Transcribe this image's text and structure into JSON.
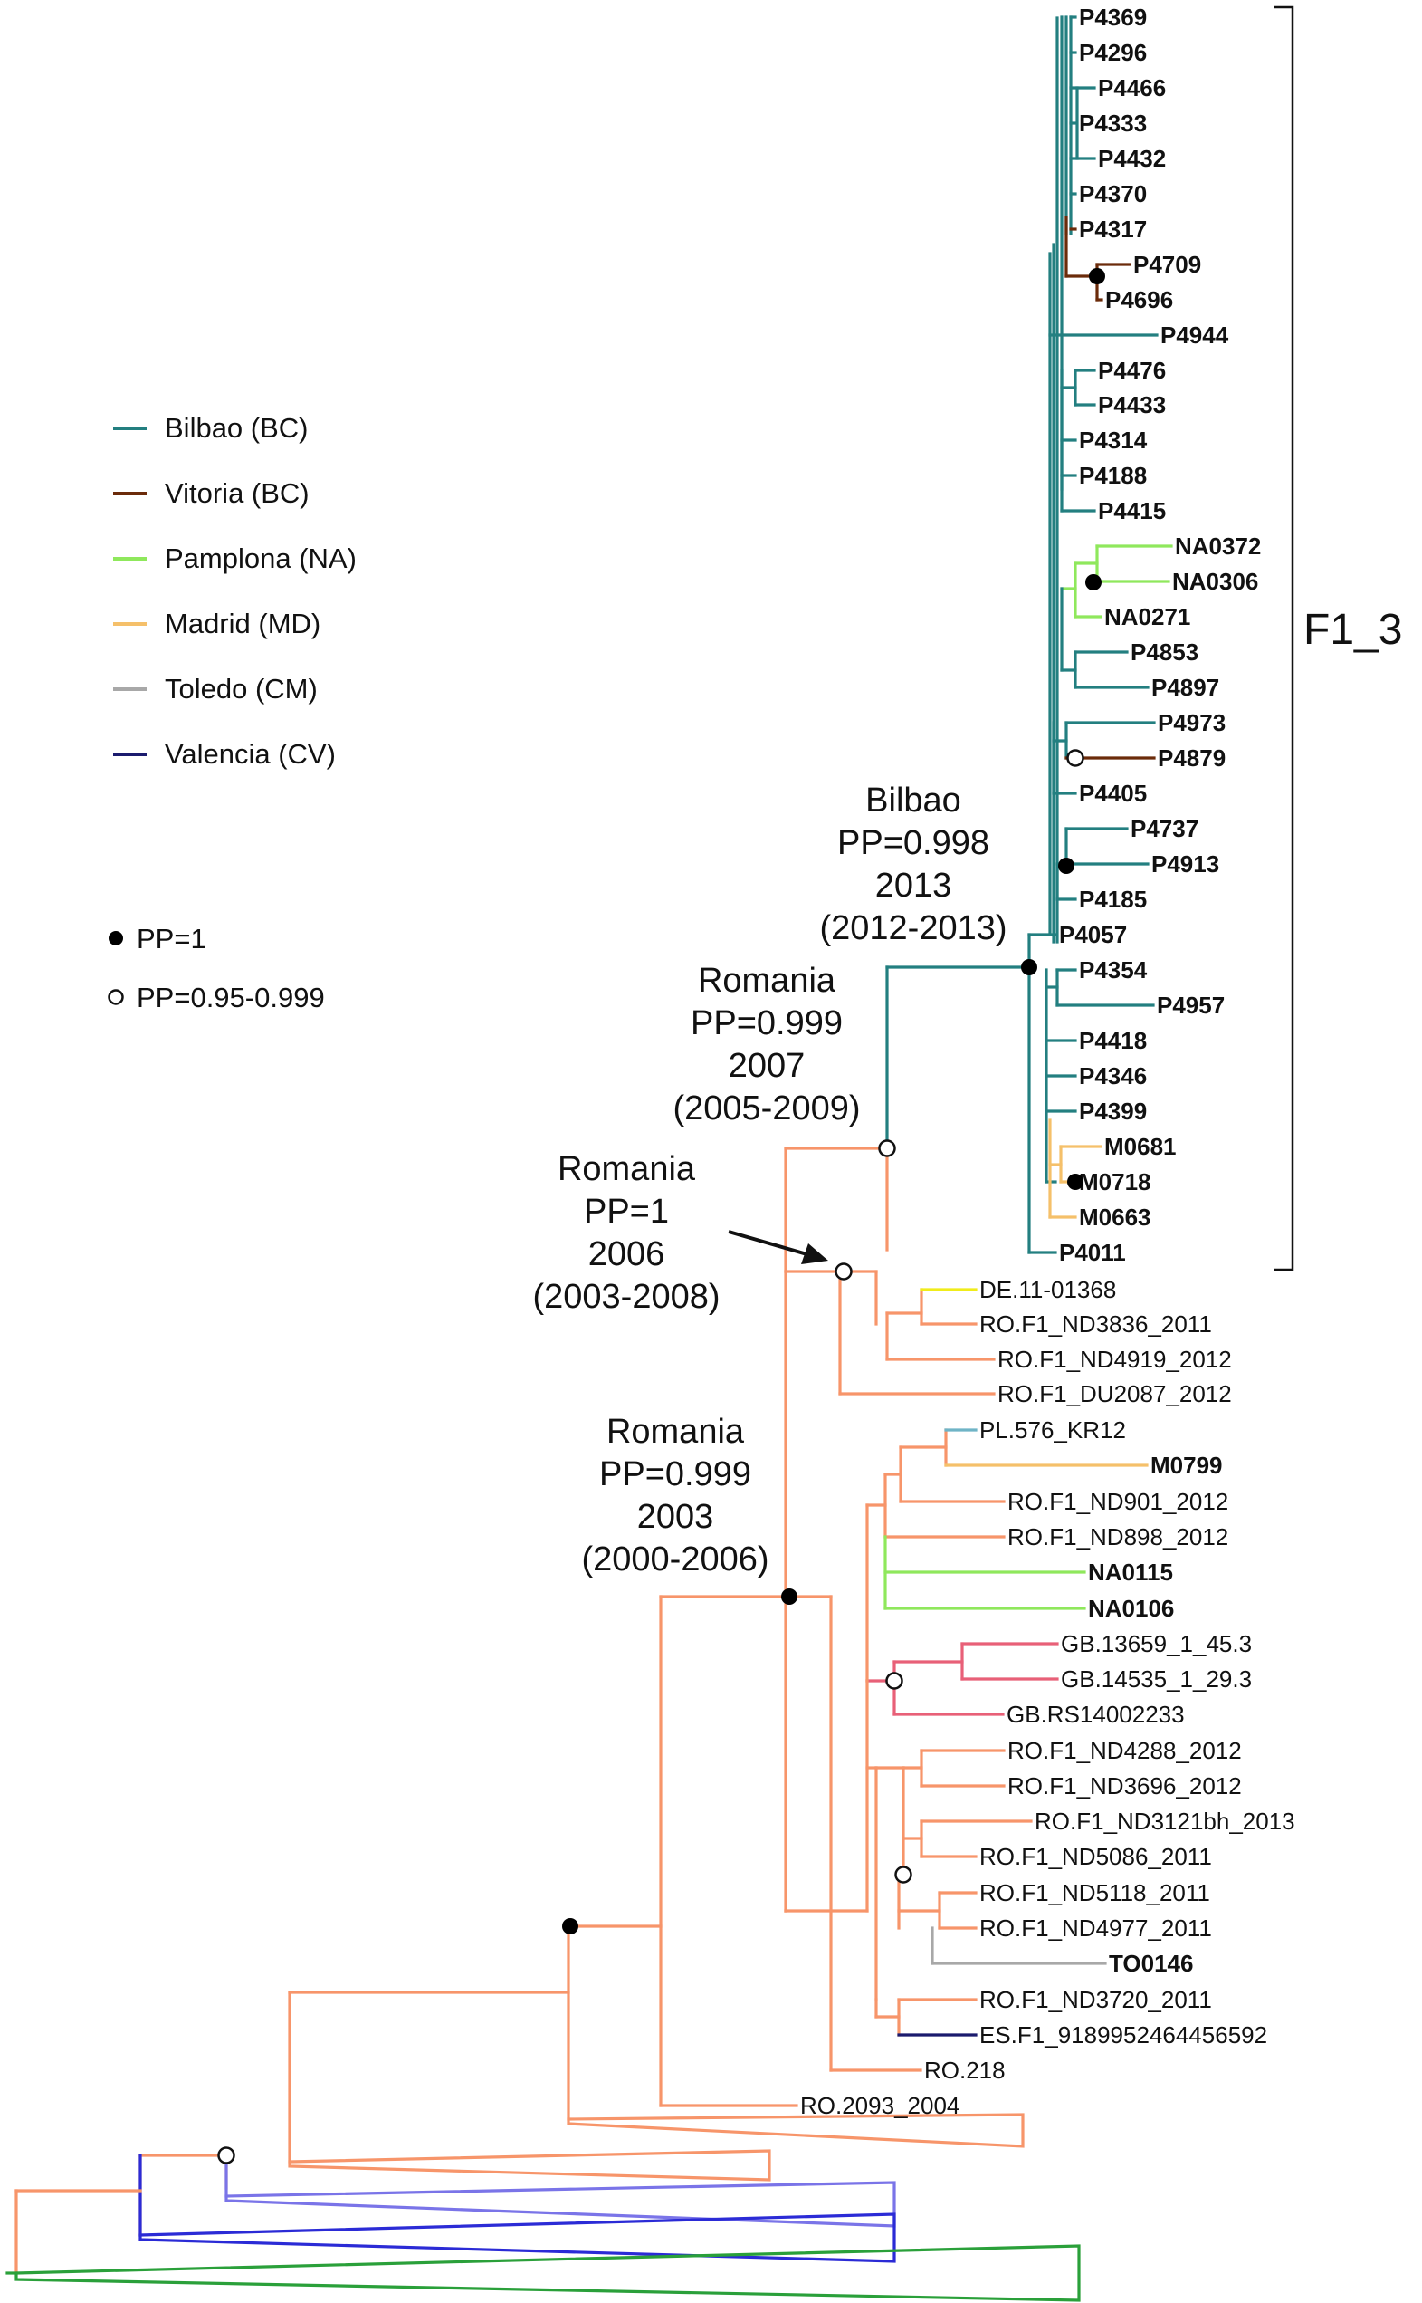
{
  "colors": {
    "bilbao": "#237f80",
    "vitoria": "#6b2b0a",
    "pamplona": "#8fe85c",
    "madrid": "#f5c06a",
    "toledo": "#a8a8a8",
    "valencia": "#1b1b6e",
    "romania": "#f7956a",
    "germany": "#f0ec1a",
    "poland": "#6fb4c6",
    "uk": "#e86078",
    "outgroup_purple": "#7a74e8",
    "outgroup_blue": "#2b2bd6",
    "outgroup_green": "#2aa03a"
  },
  "legend": {
    "locations": [
      {
        "label": "Bilbao (BC)",
        "color": "#237f80"
      },
      {
        "label": "Vitoria (BC)",
        "color": "#6b2b0a"
      },
      {
        "label": "Pamplona (NA)",
        "color": "#8fe85c"
      },
      {
        "label": "Madrid (MD)",
        "color": "#f5c06a"
      },
      {
        "label": "Toledo (CM)",
        "color": "#a8a8a8"
      },
      {
        "label": "Valencia (CV)",
        "color": "#1b1b6e"
      }
    ],
    "pp_full": "PP=1",
    "pp_partial": "PP=0.95-0.999"
  },
  "clade_label": "F1_3",
  "annotations": [
    {
      "lines": [
        "Bilbao",
        "PP=0.998",
        "2013",
        "(2012-2013)"
      ]
    },
    {
      "lines": [
        "Romania",
        "PP=0.999",
        "2007",
        "(2005-2009)"
      ]
    },
    {
      "lines": [
        "Romania",
        "PP=1",
        "2006",
        "(2003-2008)"
      ]
    },
    {
      "lines": [
        "Romania",
        "PP=0.999",
        "2003",
        "(2000-2006)"
      ]
    }
  ],
  "leaves": {
    "f13": [
      "P4369",
      "P4296",
      "P4466",
      "P4333",
      "P4432",
      "P4370",
      "P4317",
      "P4709",
      "P4696",
      "P4944",
      "P4476",
      "P4433",
      "P4314",
      "P4188",
      "P4415",
      "NA0372",
      "NA0306",
      "NA0271",
      "P4853",
      "P4897",
      "P4973",
      "P4879",
      "P4405",
      "P4737",
      "P4913",
      "P4185",
      "P4057",
      "P4354",
      "P4957",
      "P4418",
      "P4346",
      "P4399",
      "M0681",
      "M0718",
      "M0663",
      "P4011"
    ],
    "others": [
      "DE.11-01368",
      "RO.F1_ND3836_2011",
      "RO.F1_ND4919_2012",
      "RO.F1_DU2087_2012",
      "PL.576_KR12",
      "M0799",
      "RO.F1_ND901_2012",
      "RO.F1_ND898_2012",
      "NA0115",
      "NA0106",
      "GB.13659_1_45.3",
      "GB.14535_1_29.3",
      "GB.RS14002233",
      "RO.F1_ND4288_2012",
      "RO.F1_ND3696_2012",
      "RO.F1_ND3121bh_2013",
      "RO.F1_ND5086_2011",
      "RO.F1_ND5118_2011",
      "RO.F1_ND4977_2011",
      "TO0146",
      "RO.F1_ND3720_2011",
      "ES.F1_9189952464456592",
      "RO.218",
      "RO.2093_2004"
    ]
  }
}
